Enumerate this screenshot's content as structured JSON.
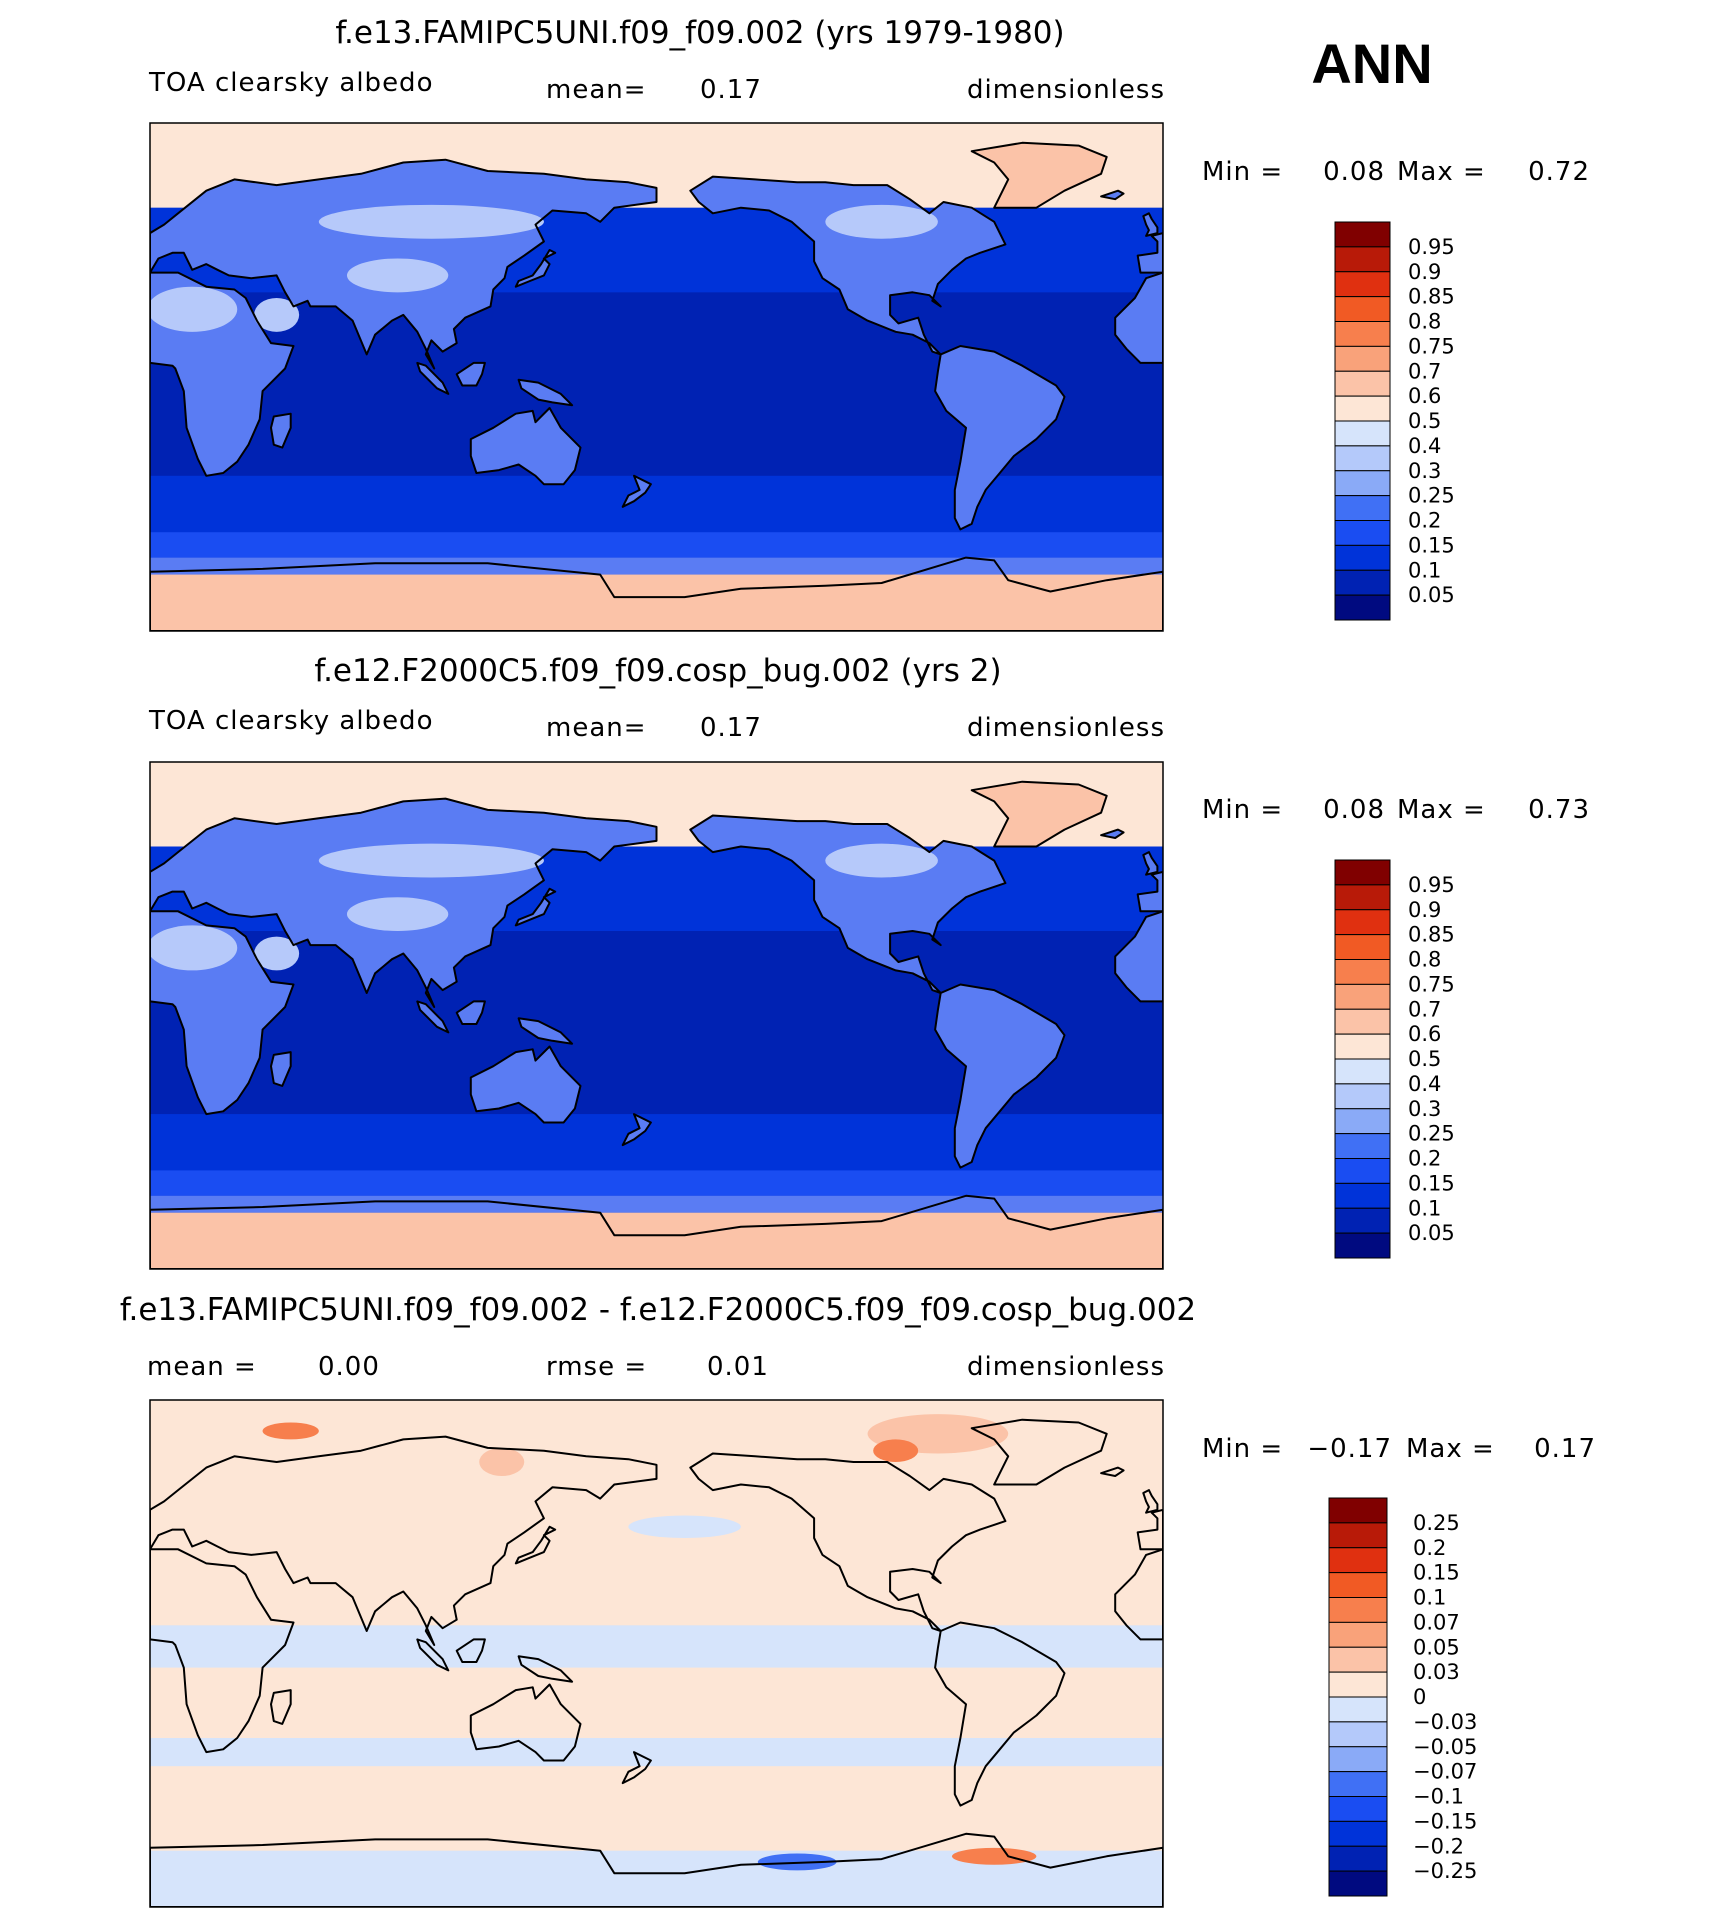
{
  "season": "ANN",
  "colors": {
    "scale": [
      "#000a80",
      "#0022b3",
      "#0033d9",
      "#1a4df2",
      "#4070f5",
      "#8aaaf7",
      "#b4c9fa",
      "#d6e4fb",
      "#fde6d6",
      "#fbc3a8",
      "#f9a27a",
      "#f77f4d",
      "#f15a24",
      "#e03010",
      "#b81a08",
      "#800000"
    ],
    "mean_map": {
      "land": "#5a7cf3",
      "land_high": "#b6c9fa",
      "ocean_deep": "#0022b3",
      "ocean": "#0033d9",
      "storm_track": "#1a4df2",
      "polar": "#fbc3a8",
      "sea_ice": "#fde6d6"
    },
    "diff_map": {
      "base": "#fde6d6",
      "cool": "#d6e4fb",
      "warm": "#fbc3a8",
      "strong_warm": "#f77f4d",
      "strong_cool": "#4070f5"
    }
  },
  "panels": [
    {
      "id": "test",
      "title": "f.e13.FAMIPC5UNI.f09_f09.002 (yrs 1979-1980)",
      "left_label": "TOA clearsky albedo",
      "center_label": "mean=",
      "center_value": "0.17",
      "right_label": "dimensionless",
      "min_label": "Min =",
      "min_value": "0.08",
      "max_label": "Max =",
      "max_value": "0.72",
      "levels": [
        "0.95",
        "0.9",
        "0.85",
        "0.8",
        "0.75",
        "0.7",
        "0.6",
        "0.5",
        "0.4",
        "0.3",
        "0.25",
        "0.2",
        "0.15",
        "0.1",
        "0.05"
      ]
    },
    {
      "id": "control",
      "title": "f.e12.F2000C5.f09_f09.cosp_bug.002 (yrs 2)",
      "left_label": "TOA clearsky albedo",
      "center_label": "mean=",
      "center_value": "0.17",
      "right_label": "dimensionless",
      "min_label": "Min =",
      "min_value": "0.08",
      "max_label": "Max =",
      "max_value": "0.73",
      "levels": [
        "0.95",
        "0.9",
        "0.85",
        "0.8",
        "0.75",
        "0.7",
        "0.6",
        "0.5",
        "0.4",
        "0.3",
        "0.25",
        "0.2",
        "0.15",
        "0.1",
        "0.05"
      ]
    },
    {
      "id": "diff",
      "title": "f.e13.FAMIPC5UNI.f09_f09.002 - f.e12.F2000C5.f09_f09.cosp_bug.002",
      "left_label": "mean =",
      "left_value": "0.00",
      "center_label": "rmse =",
      "center_value": "0.01",
      "right_label": "dimensionless",
      "min_label": "Min =",
      "min_value": "−0.17",
      "max_label": "Max =",
      "max_value": "0.17",
      "levels": [
        "0.25",
        "0.2",
        "0.15",
        "0.1",
        "0.07",
        "0.05",
        "0.03",
        "0",
        "−0.03",
        "−0.05",
        "−0.07",
        "−0.1",
        "−0.15",
        "−0.2",
        "−0.25"
      ]
    }
  ],
  "chart_data": [
    {
      "type": "heatmap",
      "title": "f.e13.FAMIPC5UNI.f09_f09.002 (yrs 1979-1980)",
      "variable": "TOA clearsky albedo",
      "units": "dimensionless",
      "mean": 0.17,
      "min": 0.08,
      "max": 0.72,
      "contour_levels": [
        0.05,
        0.1,
        0.15,
        0.2,
        0.25,
        0.3,
        0.4,
        0.5,
        0.6,
        0.7,
        0.75,
        0.8,
        0.85,
        0.9,
        0.95
      ]
    },
    {
      "type": "heatmap",
      "title": "f.e12.F2000C5.f09_f09.cosp_bug.002 (yrs 2)",
      "variable": "TOA clearsky albedo",
      "units": "dimensionless",
      "mean": 0.17,
      "min": 0.08,
      "max": 0.73,
      "contour_levels": [
        0.05,
        0.1,
        0.15,
        0.2,
        0.25,
        0.3,
        0.4,
        0.5,
        0.6,
        0.7,
        0.75,
        0.8,
        0.85,
        0.9,
        0.95
      ]
    },
    {
      "type": "heatmap",
      "title": "f.e13.FAMIPC5UNI.f09_f09.002 - f.e12.F2000C5.f09_f09.cosp_bug.002",
      "units": "dimensionless",
      "mean": 0.0,
      "rmse": 0.01,
      "min": -0.17,
      "max": 0.17,
      "contour_levels": [
        -0.25,
        -0.2,
        -0.15,
        -0.1,
        -0.07,
        -0.05,
        -0.03,
        0,
        0.03,
        0.05,
        0.07,
        0.1,
        0.15,
        0.2,
        0.25
      ]
    }
  ]
}
